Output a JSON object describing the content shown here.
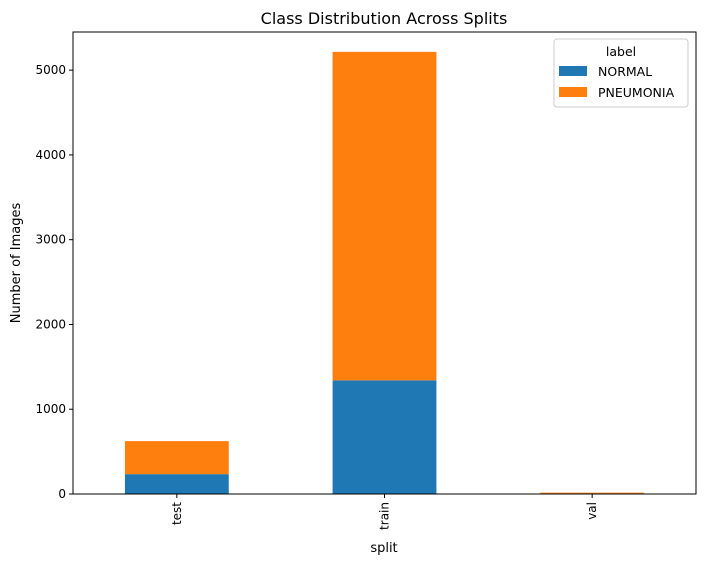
{
  "chart_data": {
    "type": "bar",
    "stacked": true,
    "title": "Class Distribution Across Splits",
    "xlabel": "split",
    "ylabel": "Number of Images",
    "categories": [
      "test",
      "train",
      "val"
    ],
    "series": [
      {
        "name": "NORMAL",
        "values": [
          234,
          1341,
          8
        ],
        "color": "#1f77b4"
      },
      {
        "name": "PNEUMONIA",
        "values": [
          390,
          3875,
          8
        ],
        "color": "#ff7f0e"
      }
    ],
    "ylim": [
      0,
      5450
    ],
    "yticks": [
      0,
      1000,
      2000,
      3000,
      4000,
      5000
    ],
    "grid": false,
    "legend": {
      "title": "label",
      "position": "top-right"
    }
  }
}
